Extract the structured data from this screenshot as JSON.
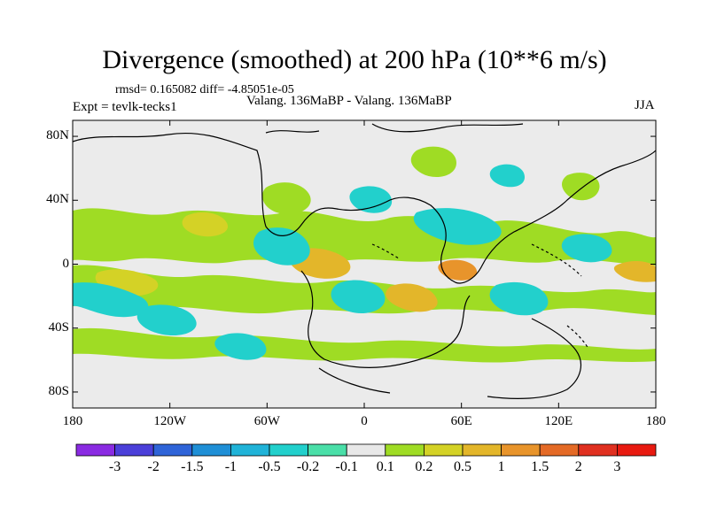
{
  "header": {
    "title": "Divergence (smoothed) at 200 hPa (10**6 m/s)",
    "stats": "rmsd= 0.165082 diff= -4.85051e-05",
    "experiment": "Expt = tevlk-tecks1",
    "subtitle": "Valang. 136MaBP - Valang. 136MaBP",
    "season": "JJA"
  },
  "axes": {
    "y_ticks": [
      {
        "label": "80N",
        "value": 80
      },
      {
        "label": "40N",
        "value": 40
      },
      {
        "label": "0",
        "value": 0
      },
      {
        "label": "40S",
        "value": -40
      },
      {
        "label": "80S",
        "value": -80
      }
    ],
    "x_ticks": [
      {
        "label": "180",
        "value": -180
      },
      {
        "label": "120W",
        "value": -120
      },
      {
        "label": "60W",
        "value": -60
      },
      {
        "label": "0",
        "value": 0
      },
      {
        "label": "60E",
        "value": 60
      },
      {
        "label": "120E",
        "value": 120
      },
      {
        "label": "180",
        "value": 180
      }
    ],
    "lon_range": [
      -180,
      180
    ],
    "lat_range": [
      -90,
      90
    ]
  },
  "colorbar": {
    "labels": [
      "-3",
      "-2",
      "-1.5",
      "-1",
      "-0.5",
      "-0.2",
      "-0.1",
      "0.1",
      "0.2",
      "0.5",
      "1",
      "1.5",
      "2",
      "3"
    ],
    "colors": [
      "#8a2be2",
      "#4b3fd9",
      "#2f64d8",
      "#1f8fd6",
      "#20b3d8",
      "#22d0cc",
      "#4adfa8",
      "#e8e8e8",
      "#9fdc24",
      "#d4d226",
      "#e3b62a",
      "#e8942b",
      "#e46a26",
      "#e03020",
      "#e81a10"
    ]
  },
  "colors": {
    "background": "#ffffff",
    "map_background": "#ebebeb",
    "coast": "#000000"
  }
}
